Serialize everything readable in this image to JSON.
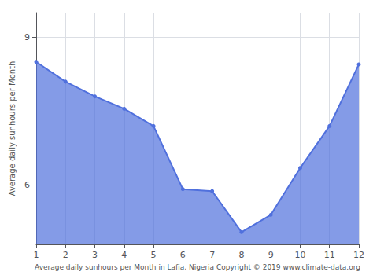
{
  "chart_data": {
    "type": "area",
    "x": [
      1,
      2,
      3,
      4,
      5,
      6,
      7,
      8,
      9,
      10,
      11,
      12
    ],
    "values": [
      8.5,
      8.1,
      7.8,
      7.55,
      7.2,
      5.92,
      5.88,
      5.05,
      5.4,
      6.35,
      7.2,
      8.45
    ],
    "xlabel": "Average daily sunhours per Month in Lafia, Nigeria Copyright © 2019 www.climate-data.org",
    "ylabel": "Average daily sunhours per Month",
    "xlim": [
      1,
      12
    ],
    "xticks": [
      1,
      2,
      3,
      4,
      5,
      6,
      7,
      8,
      9,
      10,
      11,
      12
    ],
    "ylim": [
      4.8,
      9.5
    ],
    "yticks": [
      6,
      9
    ],
    "grid": true,
    "marker": "circle"
  }
}
